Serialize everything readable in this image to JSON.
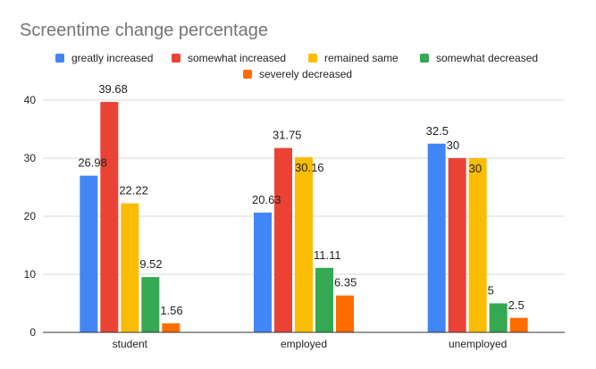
{
  "chart_data": {
    "type": "bar",
    "title": "Screentime change percentage",
    "categories": [
      "student",
      "employed",
      "unemployed"
    ],
    "series": [
      {
        "name": "greatly increased",
        "color": "#4285F4",
        "values": [
          26.98,
          20.63,
          32.5
        ]
      },
      {
        "name": "somewhat increased",
        "color": "#EA4335",
        "values": [
          39.68,
          31.75,
          30
        ]
      },
      {
        "name": "remained same",
        "color": "#FBBC04",
        "values": [
          22.22,
          30.16,
          30
        ]
      },
      {
        "name": "somewhat decreased",
        "color": "#34A853",
        "values": [
          9.52,
          11.11,
          5
        ]
      },
      {
        "name": "severely decreased",
        "color": "#FF6D01",
        "values": [
          1.56,
          6.35,
          2.5
        ]
      }
    ],
    "data_labels": [
      [
        "26.98",
        "20.63",
        "32.5"
      ],
      [
        "39.68",
        "31.75",
        "30"
      ],
      [
        "22.22",
        "30.16",
        "30"
      ],
      [
        "9.52",
        "11.11",
        "5"
      ],
      [
        "1.56",
        "6.35",
        "2.5"
      ]
    ],
    "yticks": [
      0,
      10,
      20,
      30,
      40
    ],
    "ylim": [
      0,
      40
    ],
    "grid": true,
    "legend_position": "top"
  }
}
